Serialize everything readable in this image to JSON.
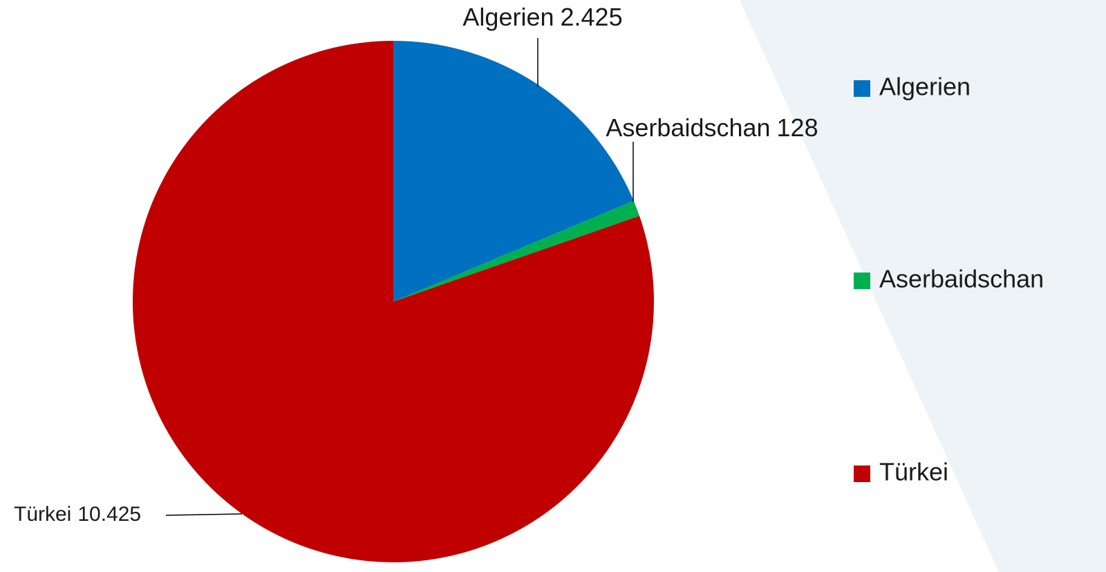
{
  "chart_data": {
    "type": "pie",
    "categories": [
      "Algerien",
      "Aserbaidschan",
      "Türkei"
    ],
    "values": [
      2425,
      128,
      10425
    ],
    "value_labels": [
      "2.425",
      "128",
      "10.425"
    ],
    "colors": [
      "#0070c0",
      "#00b050",
      "#c00000"
    ],
    "legend": "right"
  }
}
